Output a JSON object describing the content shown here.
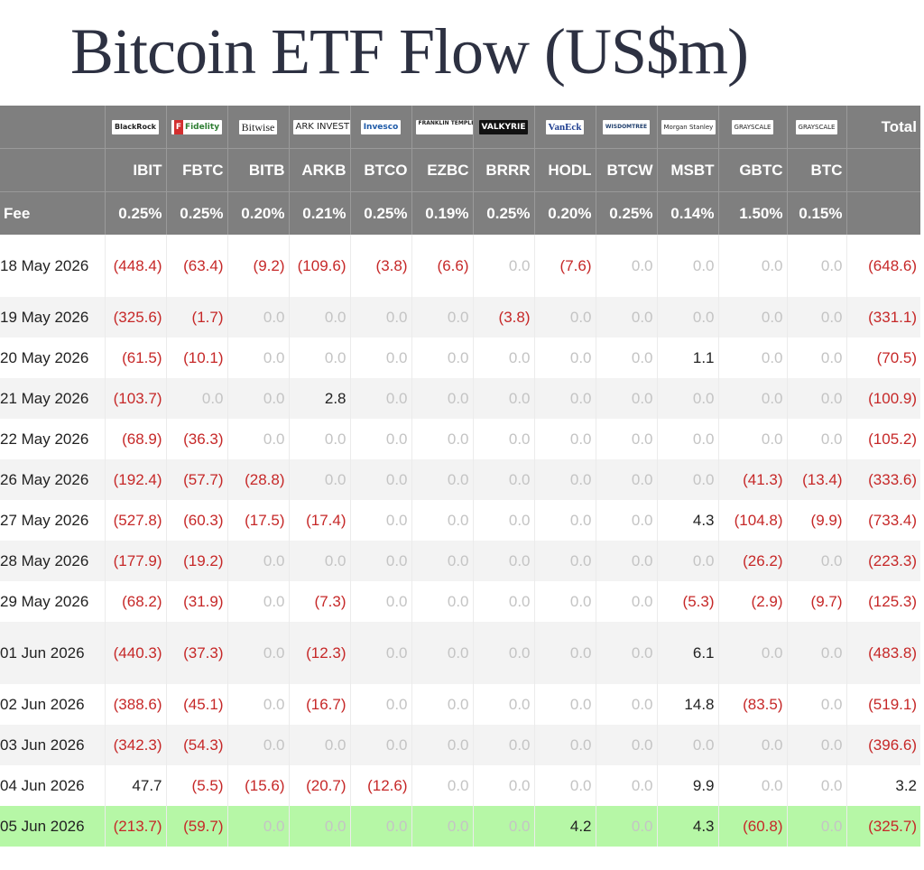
{
  "title": "Bitcoin ETF Flow (US$m)",
  "header": {
    "issuers": [
      {
        "name": "BlackRock",
        "icon": "blackrock-logo-icon"
      },
      {
        "name": "Fidelity",
        "icon": "fidelity-logo-icon"
      },
      {
        "name": "Bitwise",
        "icon": "bitwise-logo-icon"
      },
      {
        "name": "ARK INVEST",
        "icon": "ark-invest-logo-icon"
      },
      {
        "name": "Invesco",
        "icon": "invesco-logo-icon"
      },
      {
        "name": "FRANKLIN TEMPLETON",
        "icon": "franklin-templeton-logo-icon"
      },
      {
        "name": "VALKYRIE",
        "icon": "valkyrie-logo-icon"
      },
      {
        "name": "VanEck",
        "icon": "vaneck-logo-icon"
      },
      {
        "name": "WISDOMTREE",
        "icon": "wisdomtree-logo-icon"
      },
      {
        "name": "Morgan Stanley",
        "icon": "morgan-stanley-logo-icon"
      },
      {
        "name": "GRAYSCALE",
        "icon": "grayscale-logo-icon"
      },
      {
        "name": "GRAYSCALE",
        "icon": "grayscale-logo-icon"
      }
    ],
    "total_label": "Total",
    "tickers": [
      "IBIT",
      "FBTC",
      "BITB",
      "ARKB",
      "BTCO",
      "EZBC",
      "BRRR",
      "HODL",
      "BTCW",
      "MSBT",
      "GBTC",
      "BTC"
    ],
    "fee_label": "Fee",
    "fees": [
      "0.25%",
      "0.25%",
      "0.20%",
      "0.21%",
      "0.25%",
      "0.19%",
      "0.25%",
      "0.20%",
      "0.25%",
      "0.14%",
      "1.50%",
      "0.15%"
    ]
  },
  "rows": [
    {
      "date": "18 May 2026",
      "values": [
        "(448.4)",
        "(63.4)",
        "(9.2)",
        "(109.6)",
        "(3.8)",
        "(6.6)",
        "0.0",
        "(7.6)",
        "0.0",
        "0.0",
        "0.0",
        "0.0"
      ],
      "total": "(648.6)"
    },
    {
      "date": "19 May 2026",
      "values": [
        "(325.6)",
        "(1.7)",
        "0.0",
        "0.0",
        "0.0",
        "0.0",
        "(3.8)",
        "0.0",
        "0.0",
        "0.0",
        "0.0",
        "0.0"
      ],
      "total": "(331.1)"
    },
    {
      "date": "20 May 2026",
      "values": [
        "(61.5)",
        "(10.1)",
        "0.0",
        "0.0",
        "0.0",
        "0.0",
        "0.0",
        "0.0",
        "0.0",
        "1.1",
        "0.0",
        "0.0"
      ],
      "total": "(70.5)"
    },
    {
      "date": "21 May 2026",
      "values": [
        "(103.7)",
        "0.0",
        "0.0",
        "2.8",
        "0.0",
        "0.0",
        "0.0",
        "0.0",
        "0.0",
        "0.0",
        "0.0",
        "0.0"
      ],
      "total": "(100.9)"
    },
    {
      "date": "22 May 2026",
      "values": [
        "(68.9)",
        "(36.3)",
        "0.0",
        "0.0",
        "0.0",
        "0.0",
        "0.0",
        "0.0",
        "0.0",
        "0.0",
        "0.0",
        "0.0"
      ],
      "total": "(105.2)"
    },
    {
      "date": "26 May 2026",
      "values": [
        "(192.4)",
        "(57.7)",
        "(28.8)",
        "0.0",
        "0.0",
        "0.0",
        "0.0",
        "0.0",
        "0.0",
        "0.0",
        "(41.3)",
        "(13.4)"
      ],
      "total": "(333.6)"
    },
    {
      "date": "27 May 2026",
      "values": [
        "(527.8)",
        "(60.3)",
        "(17.5)",
        "(17.4)",
        "0.0",
        "0.0",
        "0.0",
        "0.0",
        "0.0",
        "4.3",
        "(104.8)",
        "(9.9)"
      ],
      "total": "(733.4)"
    },
    {
      "date": "28 May 2026",
      "values": [
        "(177.9)",
        "(19.2)",
        "0.0",
        "0.0",
        "0.0",
        "0.0",
        "0.0",
        "0.0",
        "0.0",
        "0.0",
        "(26.2)",
        "0.0"
      ],
      "total": "(223.3)"
    },
    {
      "date": "29 May 2026",
      "values": [
        "(68.2)",
        "(31.9)",
        "0.0",
        "(7.3)",
        "0.0",
        "0.0",
        "0.0",
        "0.0",
        "0.0",
        "(5.3)",
        "(2.9)",
        "(9.7)"
      ],
      "total": "(125.3)"
    },
    {
      "date": "01 Jun 2026",
      "values": [
        "(440.3)",
        "(37.3)",
        "0.0",
        "(12.3)",
        "0.0",
        "0.0",
        "0.0",
        "0.0",
        "0.0",
        "6.1",
        "0.0",
        "0.0"
      ],
      "total": "(483.8)"
    },
    {
      "date": "02 Jun 2026",
      "values": [
        "(388.6)",
        "(45.1)",
        "0.0",
        "(16.7)",
        "0.0",
        "0.0",
        "0.0",
        "0.0",
        "0.0",
        "14.8",
        "(83.5)",
        "0.0"
      ],
      "total": "(519.1)"
    },
    {
      "date": "03 Jun 2026",
      "values": [
        "(342.3)",
        "(54.3)",
        "0.0",
        "0.0",
        "0.0",
        "0.0",
        "0.0",
        "0.0",
        "0.0",
        "0.0",
        "0.0",
        "0.0"
      ],
      "total": "(396.6)"
    },
    {
      "date": "04 Jun 2026",
      "values": [
        "47.7",
        "(5.5)",
        "(15.6)",
        "(20.7)",
        "(12.6)",
        "0.0",
        "0.0",
        "0.0",
        "0.0",
        "9.9",
        "0.0",
        "0.0"
      ],
      "total": "3.2"
    },
    {
      "date": "05 Jun 2026",
      "values": [
        "(213.7)",
        "(59.7)",
        "0.0",
        "0.0",
        "0.0",
        "0.0",
        "0.0",
        "4.2",
        "0.0",
        "4.3",
        "(60.8)",
        "0.0"
      ],
      "total": "(325.7)"
    }
  ],
  "colors": {
    "header_bg": "#7f7f7f",
    "negative": "#c62828",
    "zero": "#c4c4c4",
    "alt_row": "#f3f3f3",
    "highlight_row": "#b6f7a6",
    "title": "#2d3142"
  }
}
